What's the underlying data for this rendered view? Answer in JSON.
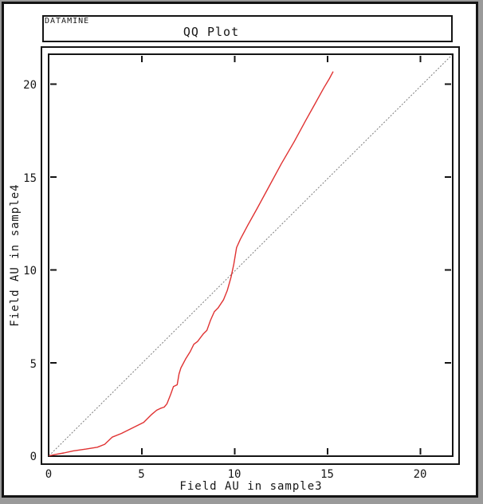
{
  "header": {
    "brand": "DATAMINE",
    "title": "QQ Plot"
  },
  "axes": {
    "x_title": "Field AU in sample3",
    "y_title": "Field AU in sample4"
  },
  "colors": {
    "curve": "#e03232",
    "reference_line": "#7d7d7d",
    "frame": "#141414",
    "chrome_gray": "#9a9a9a",
    "background": "#ffffff"
  },
  "chart_data": {
    "type": "line",
    "title": "QQ Plot",
    "xlabel": "Field AU in sample3",
    "ylabel": "Field AU in sample4",
    "xlim": [
      0,
      21.75
    ],
    "ylim": [
      0,
      21.6
    ],
    "xticks": [
      0,
      5,
      10,
      15,
      20
    ],
    "yticks": [
      0,
      5,
      10,
      15,
      20
    ],
    "grid": false,
    "legend": false,
    "series": [
      {
        "name": "qq-curve",
        "color": "#e03232",
        "style": "solid",
        "points": [
          [
            0,
            0
          ],
          [
            0.3,
            0.06
          ],
          [
            0.8,
            0.15
          ],
          [
            1.3,
            0.26
          ],
          [
            2.0,
            0.36
          ],
          [
            2.6,
            0.46
          ],
          [
            3.0,
            0.62
          ],
          [
            3.4,
            1.0
          ],
          [
            3.9,
            1.2
          ],
          [
            4.3,
            1.4
          ],
          [
            4.7,
            1.6
          ],
          [
            5.1,
            1.8
          ],
          [
            5.5,
            2.2
          ],
          [
            5.8,
            2.45
          ],
          [
            6.0,
            2.55
          ],
          [
            6.2,
            2.62
          ],
          [
            6.35,
            2.8
          ],
          [
            6.55,
            3.3
          ],
          [
            6.7,
            3.72
          ],
          [
            6.9,
            3.82
          ],
          [
            7.0,
            4.4
          ],
          [
            7.1,
            4.72
          ],
          [
            7.35,
            5.2
          ],
          [
            7.6,
            5.6
          ],
          [
            7.8,
            6.0
          ],
          [
            8.0,
            6.15
          ],
          [
            8.3,
            6.55
          ],
          [
            8.5,
            6.75
          ],
          [
            8.7,
            7.3
          ],
          [
            8.9,
            7.75
          ],
          [
            9.1,
            7.95
          ],
          [
            9.4,
            8.4
          ],
          [
            9.6,
            8.9
          ],
          [
            9.8,
            9.6
          ],
          [
            9.95,
            10.3
          ],
          [
            10.1,
            11.2
          ],
          [
            10.3,
            11.65
          ],
          [
            10.7,
            12.4
          ],
          [
            11.2,
            13.3
          ],
          [
            11.8,
            14.4
          ],
          [
            12.5,
            15.7
          ],
          [
            13.2,
            16.9
          ],
          [
            13.8,
            18.0
          ],
          [
            14.3,
            18.9
          ],
          [
            14.8,
            19.8
          ],
          [
            15.1,
            20.3
          ],
          [
            15.3,
            20.68
          ]
        ]
      },
      {
        "name": "identity-reference-line",
        "color": "#7d7d7d",
        "style": "dotted",
        "points": [
          [
            0,
            0
          ],
          [
            21.7,
            21.57
          ]
        ]
      }
    ]
  }
}
